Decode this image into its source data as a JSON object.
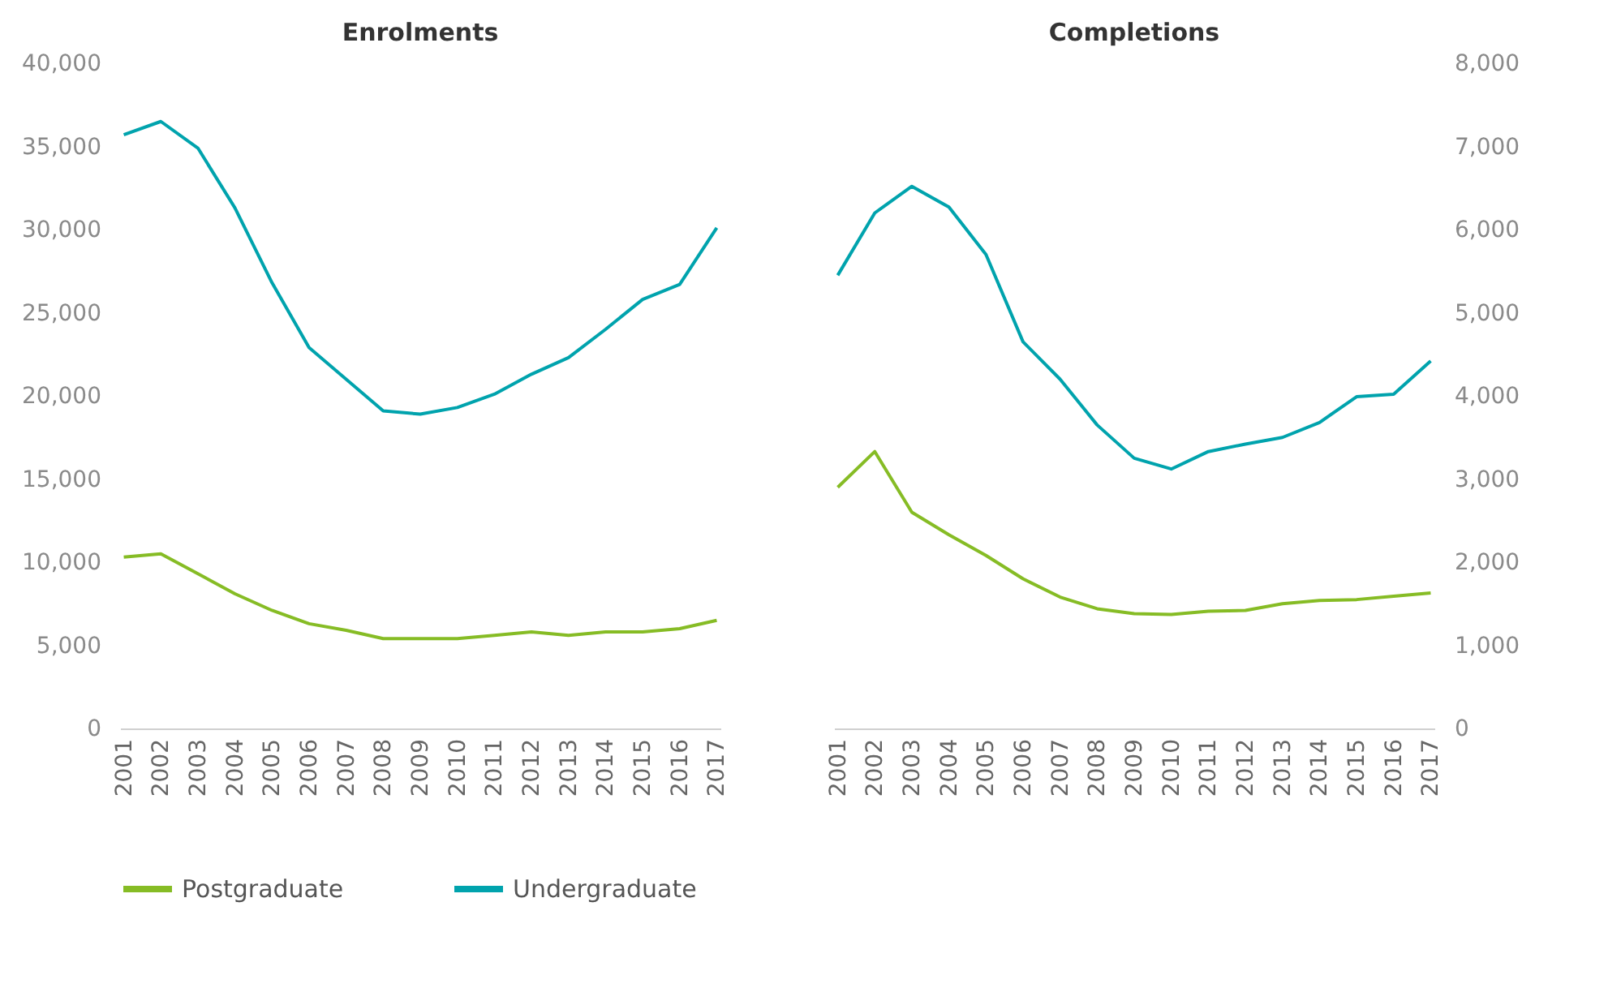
{
  "chart_data": [
    {
      "type": "line",
      "title": "Enrolments",
      "categories": [
        "2001",
        "2002",
        "2003",
        "2004",
        "2005",
        "2006",
        "2007",
        "2008",
        "2009",
        "2010",
        "2011",
        "2012",
        "2013",
        "2014",
        "2015",
        "2016",
        "2017"
      ],
      "ylim": [
        0,
        40000
      ],
      "yticks": [
        0,
        {
          "value": 5000,
          "label": "5,000"
        },
        {
          "value": 10000,
          "label": "10,000"
        },
        {
          "value": 15000,
          "label": "15,000"
        },
        {
          "value": 20000,
          "label": "20,000"
        },
        {
          "value": 25000,
          "label": "25,000"
        },
        {
          "value": 30000,
          "label": "30,000"
        },
        {
          "value": 35000,
          "label": "35,000"
        },
        {
          "value": 40000,
          "label": "40,000"
        }
      ],
      "grid": false,
      "legend": "bottom",
      "series": [
        {
          "name": "Postgraduate",
          "color": "#86bc25",
          "values": [
            10300,
            10500,
            9300,
            8100,
            7100,
            6300,
            5900,
            5400,
            5400,
            5400,
            5600,
            5800,
            5600,
            5800,
            5800,
            6000,
            6500
          ]
        },
        {
          "name": "Undergraduate",
          "color": "#00a3ad",
          "values": [
            35700,
            36500,
            34900,
            31300,
            26800,
            22900,
            21000,
            19100,
            18900,
            19300,
            20100,
            21300,
            22300,
            24000,
            25800,
            26700,
            30100
          ]
        }
      ]
    },
    {
      "type": "line",
      "title": "Completions",
      "categories": [
        "2001",
        "2002",
        "2003",
        "2004",
        "2005",
        "2006",
        "2007",
        "2008",
        "2009",
        "2010",
        "2011",
        "2012",
        "2013",
        "2014",
        "2015",
        "2016",
        "2017"
      ],
      "y2lim": [
        0,
        8000
      ],
      "y2ticks": [
        0,
        {
          "value": 1000,
          "label": "1,000"
        },
        {
          "value": 2000,
          "label": "2,000"
        },
        {
          "value": 3000,
          "label": "3,000"
        },
        {
          "value": 4000,
          "label": "4,000"
        },
        {
          "value": 5000,
          "label": "5,000"
        },
        {
          "value": 6000,
          "label": "6,000"
        },
        {
          "value": 7000,
          "label": "7,000"
        },
        {
          "value": 8000,
          "label": "8,000"
        }
      ],
      "grid": false,
      "legend": "bottom",
      "series": [
        {
          "name": "Postgraduate",
          "color": "#86bc25",
          "axis": "y2",
          "values": [
            2900,
            3330,
            2600,
            2330,
            2080,
            1800,
            1580,
            1440,
            1380,
            1370,
            1410,
            1420,
            1500,
            1540,
            1550,
            1590,
            1630
          ]
        },
        {
          "name": "Undergraduate",
          "color": "#00a3ad",
          "axis": "y2",
          "values": [
            5450,
            6200,
            6520,
            6270,
            5700,
            4650,
            4200,
            3650,
            3250,
            3120,
            3330,
            3420,
            3500,
            3680,
            3990,
            4020,
            4420
          ]
        }
      ]
    }
  ]
}
